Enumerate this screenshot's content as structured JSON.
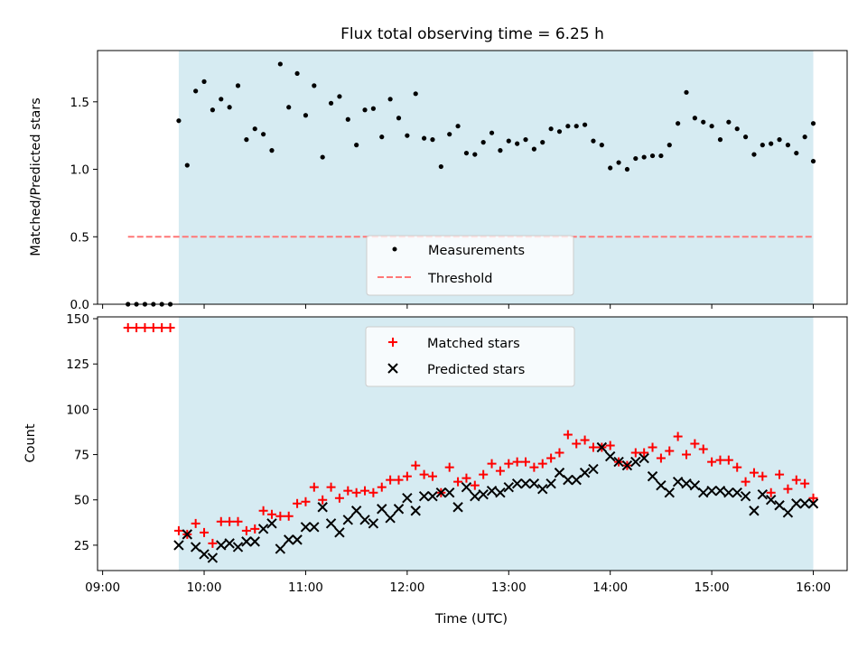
{
  "chart_data": [
    {
      "type": "scatter",
      "title": "Flux total observing time = 6.25 h",
      "xlabel": "",
      "ylabel": "Matched/Predicted stars",
      "xlim": [
        "08:57",
        "16:20"
      ],
      "ylim": [
        0,
        1.88
      ],
      "yticks": [
        "0.0",
        "0.5",
        "1.0",
        "1.5"
      ],
      "shaded_span": [
        "09:45",
        "16:00"
      ],
      "grid": false,
      "legend_position": "bottom-center",
      "series": [
        {
          "name": "Measurements",
          "marker": "dot",
          "color": "#000000",
          "x": [
            "09:15",
            "09:20",
            "09:25",
            "09:30",
            "09:35",
            "09:40",
            "09:45",
            "09:50",
            "09:55",
            "10:00",
            "10:05",
            "10:10",
            "10:15",
            "10:20",
            "10:25",
            "10:30",
            "10:35",
            "10:40",
            "10:45",
            "10:50",
            "10:55",
            "11:00",
            "11:05",
            "11:10",
            "11:15",
            "11:20",
            "11:25",
            "11:30",
            "11:35",
            "11:40",
            "11:45",
            "11:50",
            "11:55",
            "12:00",
            "12:05",
            "12:10",
            "12:15",
            "12:20",
            "12:25",
            "12:30",
            "12:35",
            "12:40",
            "12:45",
            "12:50",
            "12:55",
            "13:00",
            "13:05",
            "13:10",
            "13:15",
            "13:20",
            "13:25",
            "13:30",
            "13:35",
            "13:40",
            "13:45",
            "13:50",
            "13:55",
            "14:00",
            "14:05",
            "14:10",
            "14:15",
            "14:20",
            "14:25",
            "14:30",
            "14:35",
            "14:40",
            "14:45",
            "14:50",
            "14:55",
            "15:00",
            "15:05",
            "15:10",
            "15:15",
            "15:20",
            "15:25",
            "15:30",
            "15:35",
            "15:40",
            "15:45",
            "15:50",
            "15:55",
            "16:00",
            "16:00"
          ],
          "y": [
            0,
            0,
            0,
            0,
            0,
            0,
            1.36,
            1.03,
            1.58,
            1.65,
            1.44,
            1.52,
            1.46,
            1.62,
            1.22,
            1.3,
            1.26,
            1.14,
            1.78,
            1.46,
            1.71,
            1.4,
            1.62,
            1.09,
            1.49,
            1.54,
            1.37,
            1.18,
            1.44,
            1.45,
            1.24,
            1.52,
            1.38,
            1.25,
            1.56,
            1.23,
            1.22,
            1.02,
            1.26,
            1.32,
            1.12,
            1.11,
            1.2,
            1.27,
            1.14,
            1.21,
            1.19,
            1.22,
            1.15,
            1.2,
            1.3,
            1.28,
            1.32,
            1.32,
            1.33,
            1.21,
            1.18,
            1.01,
            1.05,
            1.0,
            1.08,
            1.09,
            1.1,
            1.1,
            1.18,
            1.34,
            1.57,
            1.38,
            1.35,
            1.32,
            1.22,
            1.35,
            1.3,
            1.24,
            1.11,
            1.18,
            1.19,
            1.22,
            1.18,
            1.12,
            1.24,
            1.34,
            1.06
          ]
        },
        {
          "name": "Threshold",
          "style": "dashed",
          "color": "#ff7777",
          "x": [
            "09:15",
            "16:00"
          ],
          "y": [
            0.5,
            0.5
          ]
        }
      ]
    },
    {
      "type": "scatter",
      "title": "",
      "xlabel": "Time (UTC)",
      "ylabel": "Count",
      "xlim": [
        "08:57",
        "16:20"
      ],
      "ylim": [
        11,
        151
      ],
      "xticks": [
        "09:00",
        "10:00",
        "11:00",
        "12:00",
        "13:00",
        "14:00",
        "15:00",
        "16:00"
      ],
      "yticks": [
        "25",
        "50",
        "75",
        "100",
        "125",
        "150"
      ],
      "shaded_span": [
        "09:45",
        "16:00"
      ],
      "grid": false,
      "legend_position": "top-center",
      "series": [
        {
          "name": "Matched stars",
          "marker": "plus",
          "color": "#ff0000",
          "x": [
            "09:15",
            "09:20",
            "09:25",
            "09:30",
            "09:35",
            "09:40",
            "09:45",
            "09:50",
            "09:55",
            "10:00",
            "10:05",
            "10:10",
            "10:15",
            "10:20",
            "10:25",
            "10:30",
            "10:35",
            "10:40",
            "10:45",
            "10:50",
            "10:55",
            "11:00",
            "11:05",
            "11:10",
            "11:15",
            "11:20",
            "11:25",
            "11:30",
            "11:35",
            "11:40",
            "11:45",
            "11:50",
            "11:55",
            "12:00",
            "12:05",
            "12:10",
            "12:15",
            "12:20",
            "12:25",
            "12:30",
            "12:35",
            "12:40",
            "12:45",
            "12:50",
            "12:55",
            "13:00",
            "13:05",
            "13:10",
            "13:15",
            "13:20",
            "13:25",
            "13:30",
            "13:35",
            "13:40",
            "13:45",
            "13:50",
            "13:55",
            "14:00",
            "14:05",
            "14:10",
            "14:15",
            "14:20",
            "14:25",
            "14:30",
            "14:35",
            "14:40",
            "14:45",
            "14:50",
            "14:55",
            "15:00",
            "15:05",
            "15:10",
            "15:15",
            "15:20",
            "15:25",
            "15:30",
            "15:35",
            "15:40",
            "15:45",
            "15:50",
            "15:55",
            "16:00"
          ],
          "y": [
            145,
            145,
            145,
            145,
            145,
            145,
            33,
            31,
            37,
            32,
            26,
            38,
            38,
            38,
            33,
            34,
            44,
            42,
            41,
            41,
            48,
            49,
            57,
            50,
            57,
            51,
            55,
            54,
            55,
            54,
            57,
            61,
            61,
            63,
            69,
            64,
            63,
            54,
            68,
            60,
            62,
            58,
            64,
            70,
            66,
            70,
            71,
            71,
            68,
            70,
            73,
            76,
            86,
            81,
            83,
            79,
            79,
            80,
            71,
            69,
            76,
            76,
            79,
            73,
            77,
            85,
            75,
            81,
            78,
            71,
            72,
            72,
            68,
            60,
            65,
            63,
            54,
            64,
            56,
            61,
            59,
            51
          ]
        },
        {
          "name": "Predicted stars",
          "marker": "x",
          "color": "#000000",
          "x": [
            "09:45",
            "09:50",
            "09:55",
            "10:00",
            "10:05",
            "10:10",
            "10:15",
            "10:20",
            "10:25",
            "10:30",
            "10:35",
            "10:40",
            "10:45",
            "10:50",
            "10:55",
            "11:00",
            "11:05",
            "11:10",
            "11:15",
            "11:20",
            "11:25",
            "11:30",
            "11:35",
            "11:40",
            "11:45",
            "11:50",
            "11:55",
            "12:00",
            "12:05",
            "12:10",
            "12:15",
            "12:20",
            "12:25",
            "12:30",
            "12:35",
            "12:40",
            "12:45",
            "12:50",
            "12:55",
            "13:00",
            "13:05",
            "13:10",
            "13:15",
            "13:20",
            "13:25",
            "13:30",
            "13:35",
            "13:40",
            "13:45",
            "13:50",
            "13:55",
            "14:00",
            "14:05",
            "14:10",
            "14:15",
            "14:20",
            "14:25",
            "14:30",
            "14:35",
            "14:40",
            "14:45",
            "14:50",
            "14:55",
            "15:00",
            "15:05",
            "15:10",
            "15:15",
            "15:20",
            "15:25",
            "15:30",
            "15:35",
            "15:40",
            "15:45",
            "15:50",
            "15:55",
            "16:00"
          ],
          "y": [
            25,
            31,
            24,
            20,
            18,
            25,
            26,
            24,
            27,
            27,
            34,
            37,
            23,
            28,
            28,
            35,
            35,
            46,
            37,
            32,
            39,
            44,
            39,
            37,
            45,
            40,
            45,
            51,
            44,
            52,
            52,
            54,
            54,
            46,
            57,
            52,
            53,
            55,
            54,
            57,
            59,
            59,
            59,
            56,
            59,
            65,
            61,
            61,
            65,
            67,
            79,
            74,
            71,
            69,
            71,
            73,
            63,
            58,
            54,
            60,
            59,
            58,
            54,
            55,
            55,
            54,
            54,
            52,
            44,
            53,
            50,
            47,
            43,
            48,
            48,
            48
          ]
        }
      ]
    }
  ]
}
